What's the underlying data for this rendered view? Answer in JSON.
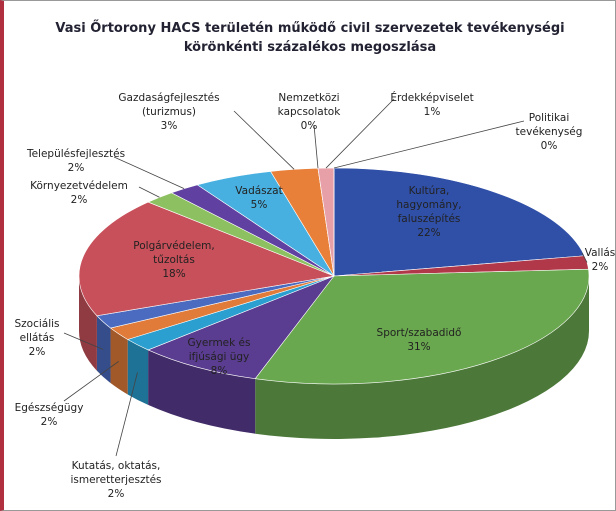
{
  "chart_data": {
    "type": "pie3d",
    "title": "Vasi Őrtorony HACS területén működő civil szervezetek tevékenységi\nkörönkénti százalékos megoszlása",
    "categories": [
      "Kultúra,\nhagyomány,\nfaluszépítés",
      "Vallás",
      "Sport/szabadidő",
      "Gyermek és\nifjúsági ügy",
      "Kutatás, oktatás,\nismeretterjesztés",
      "Egészségügy",
      "Szociális\nellátás",
      "Polgárvédelem,\ntűzoltás",
      "Környezetvédelem",
      "Településfejlesztés",
      "Vadászat",
      "Gazdaságfejlesztés\n(turizmus)",
      "Nemzetközi\nkapcsolatok",
      "Érdekképviselet",
      "Politikai\ntevékenység"
    ],
    "values": [
      22,
      2,
      31,
      8,
      2,
      2,
      2,
      18,
      2,
      2,
      5,
      3,
      0,
      1,
      0
    ],
    "value_labels": [
      "22%",
      "2%",
      "31%",
      "8%",
      "2%",
      "2%",
      "2%",
      "18%",
      "2%",
      "2%",
      "5%",
      "3%",
      "0%",
      "1%",
      "0%"
    ],
    "colors": [
      "#3050a8",
      "#b03848",
      "#6aa84f",
      "#5a3c90",
      "#2a9fd0",
      "#e07b39",
      "#4a6bbf",
      "#c8505a",
      "#8cc060",
      "#6040a0",
      "#48b0e0",
      "#e8803a",
      "#9fb0e0",
      "#e8a0a8",
      "#c8e0a0"
    ]
  }
}
